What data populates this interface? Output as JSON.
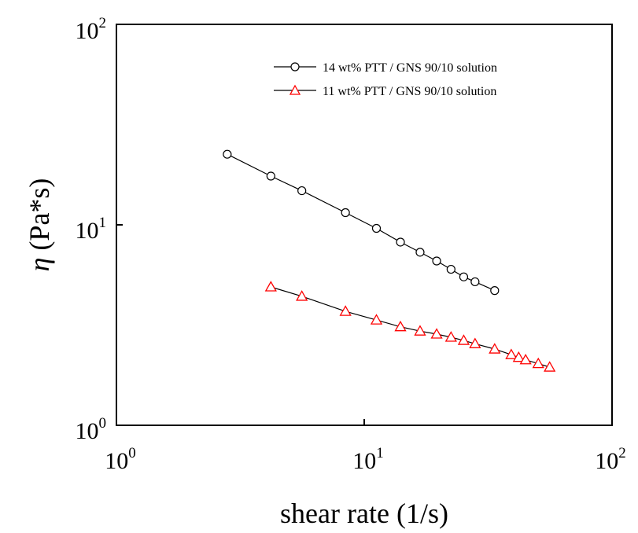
{
  "chart_data": {
    "type": "scatter",
    "xscale": "log",
    "yscale": "log",
    "xlim": [
      1,
      100
    ],
    "ylim": [
      1,
      100
    ],
    "xlabel": "shear rate (1/s)",
    "ylabel_symbol": "η",
    "ylabel_rest": " (Pa*s)",
    "ticks": [
      {
        "base": "10",
        "exp": "0"
      },
      {
        "base": "10",
        "exp": "1"
      },
      {
        "base": "10",
        "exp": "2"
      }
    ],
    "grid": false,
    "legend_position": "top-right",
    "series": [
      {
        "name": "14 wt% PTT / GNS 90/10 solution",
        "marker": "circle",
        "color": "#000000",
        "line_color": "#000000",
        "x": [
          2.8,
          4.2,
          5.6,
          8.4,
          11.2,
          14.0,
          16.8,
          19.6,
          22.4,
          25.2,
          28.0,
          33.6
        ],
        "y": [
          22.5,
          17.5,
          14.8,
          11.5,
          9.6,
          8.2,
          7.3,
          6.6,
          6.0,
          5.5,
          5.2,
          4.7
        ]
      },
      {
        "name": "11 wt% PTT / GNS 90/10 solution",
        "marker": "triangle",
        "color": "#ff0000",
        "line_color": "#000000",
        "x": [
          4.2,
          5.6,
          8.4,
          11.2,
          14.0,
          16.8,
          19.6,
          22.4,
          25.2,
          28.0,
          33.6,
          39.2,
          42.0,
          44.8,
          50.4,
          56.0
        ],
        "y": [
          4.9,
          4.4,
          3.7,
          3.35,
          3.1,
          2.95,
          2.85,
          2.75,
          2.65,
          2.55,
          2.4,
          2.25,
          2.18,
          2.12,
          2.03,
          1.95
        ]
      }
    ]
  }
}
